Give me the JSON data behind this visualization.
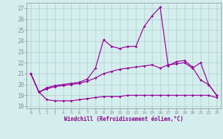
{
  "xlabel": "Windchill (Refroidissement éolien,°C)",
  "background_color": "#d4eeee",
  "grid_color": "#b0cccc",
  "line_color": "#990099",
  "x_ticks": [
    0,
    1,
    2,
    3,
    4,
    5,
    6,
    7,
    8,
    9,
    10,
    11,
    12,
    13,
    14,
    15,
    16,
    17,
    18,
    19,
    20,
    21,
    22,
    23
  ],
  "y_ticks": [
    18,
    19,
    20,
    21,
    22,
    23,
    24,
    25,
    26,
    27
  ],
  "ylim": [
    17.8,
    27.5
  ],
  "xlim": [
    -0.5,
    23.5
  ],
  "line1_x": [
    0,
    1,
    2,
    3,
    4,
    5,
    6,
    7,
    8,
    9,
    10,
    11,
    12,
    13,
    14,
    15,
    16,
    17,
    18,
    19,
    20,
    21,
    22,
    23
  ],
  "line1_y": [
    21.0,
    19.3,
    19.6,
    19.8,
    19.9,
    20.0,
    20.1,
    20.3,
    20.6,
    21.0,
    21.2,
    21.4,
    21.5,
    21.6,
    21.7,
    21.8,
    21.5,
    21.8,
    21.9,
    22.0,
    21.5,
    22.0,
    20.0,
    19.0
  ],
  "line2_x": [
    0,
    1,
    2,
    3,
    4,
    5,
    6,
    7,
    8,
    9,
    10,
    11,
    12,
    13,
    14,
    15,
    16,
    17,
    18,
    19,
    20,
    21,
    22,
    23
  ],
  "line2_y": [
    21.0,
    19.3,
    18.6,
    18.5,
    18.5,
    18.5,
    18.6,
    18.7,
    18.8,
    18.9,
    18.9,
    18.9,
    19.0,
    19.0,
    19.0,
    19.0,
    19.0,
    19.0,
    19.0,
    19.0,
    19.0,
    19.0,
    19.0,
    18.8
  ],
  "line3_x": [
    0,
    1,
    2,
    3,
    4,
    5,
    6,
    7,
    8,
    9,
    10,
    11,
    12,
    13,
    14,
    15,
    16,
    17,
    18,
    19,
    20,
    21,
    22,
    23
  ],
  "line3_y": [
    21.0,
    19.3,
    19.7,
    19.9,
    20.0,
    20.1,
    20.2,
    20.5,
    21.5,
    24.1,
    23.5,
    23.3,
    23.5,
    23.5,
    25.3,
    26.3,
    27.1,
    21.7,
    22.1,
    22.2,
    21.6,
    20.4,
    20.0,
    19.0
  ]
}
